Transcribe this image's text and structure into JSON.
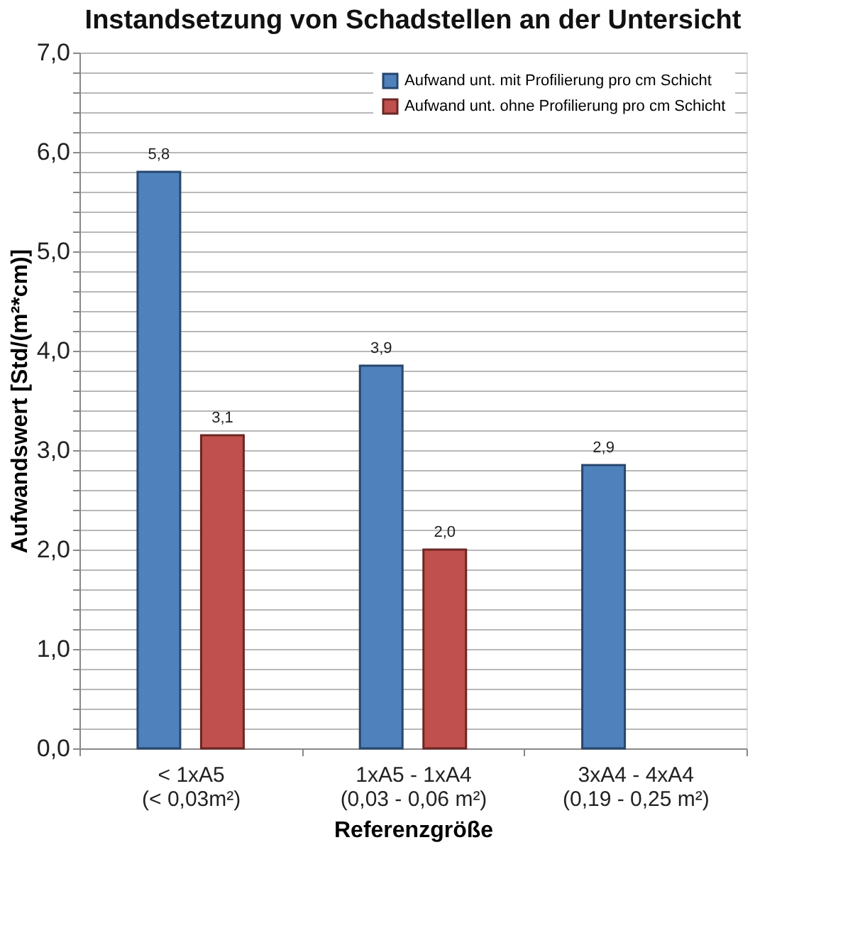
{
  "chart_data": {
    "type": "bar",
    "title": "Instandsetzung von Schadstellen an der Untersicht",
    "xlabel": "Referenzgröße",
    "ylabel": "Aufwandswert [Std/(m²*cm)]",
    "categories": [
      "< 1xA5\n(< 0,03m²)",
      "1xA5  - 1xA4\n(0,03 - 0,06 m²)",
      "3xA4 - 4xA4\n(0,19 - 0,25 m²)"
    ],
    "series": [
      {
        "name": "Aufwand unt. mit Profilierung pro  cm Schicht",
        "color": "#4f81bd",
        "values": [
          5.8,
          3.85,
          2.85
        ],
        "value_labels": [
          "5,8",
          "3,9",
          "2,9"
        ]
      },
      {
        "name": "Aufwand unt. ohne Profilierung pro cm Schicht",
        "color": "#c0504d",
        "values": [
          3.15,
          2.0,
          null
        ],
        "value_labels": [
          "3,1",
          "2,0",
          null
        ]
      }
    ],
    "ylim": [
      0,
      7
    ],
    "yticks": [
      {
        "value": 0,
        "label": "0,0"
      },
      {
        "value": 0.2,
        "label": null
      },
      {
        "value": 0.4,
        "label": null
      },
      {
        "value": 0.6,
        "label": null
      },
      {
        "value": 0.8,
        "label": null
      },
      {
        "value": 1,
        "label": "1,0"
      },
      {
        "value": 1.2,
        "label": null
      },
      {
        "value": 1.4,
        "label": null
      },
      {
        "value": 1.6,
        "label": null
      },
      {
        "value": 1.8,
        "label": null
      },
      {
        "value": 2,
        "label": "2,0"
      },
      {
        "value": 2.2,
        "label": null
      },
      {
        "value": 2.4,
        "label": null
      },
      {
        "value": 2.6,
        "label": null
      },
      {
        "value": 2.8,
        "label": null
      },
      {
        "value": 3,
        "label": "3,0"
      },
      {
        "value": 3.2,
        "label": null
      },
      {
        "value": 3.4,
        "label": null
      },
      {
        "value": 3.6,
        "label": null
      },
      {
        "value": 3.8,
        "label": null
      },
      {
        "value": 4,
        "label": "4,0"
      },
      {
        "value": 4.2,
        "label": null
      },
      {
        "value": 4.4,
        "label": null
      },
      {
        "value": 4.6,
        "label": null
      },
      {
        "value": 4.8,
        "label": null
      },
      {
        "value": 5,
        "label": "5,0"
      },
      {
        "value": 5.2,
        "label": null
      },
      {
        "value": 5.4,
        "label": null
      },
      {
        "value": 5.6,
        "label": null
      },
      {
        "value": 5.8,
        "label": null
      },
      {
        "value": 6,
        "label": "6,0"
      },
      {
        "value": 6.2,
        "label": null
      },
      {
        "value": 6.4,
        "label": null
      },
      {
        "value": 6.6,
        "label": null
      },
      {
        "value": 6.8,
        "label": null
      },
      {
        "value": 7,
        "label": "7,0"
      }
    ],
    "grid": true,
    "legend": "top right"
  }
}
